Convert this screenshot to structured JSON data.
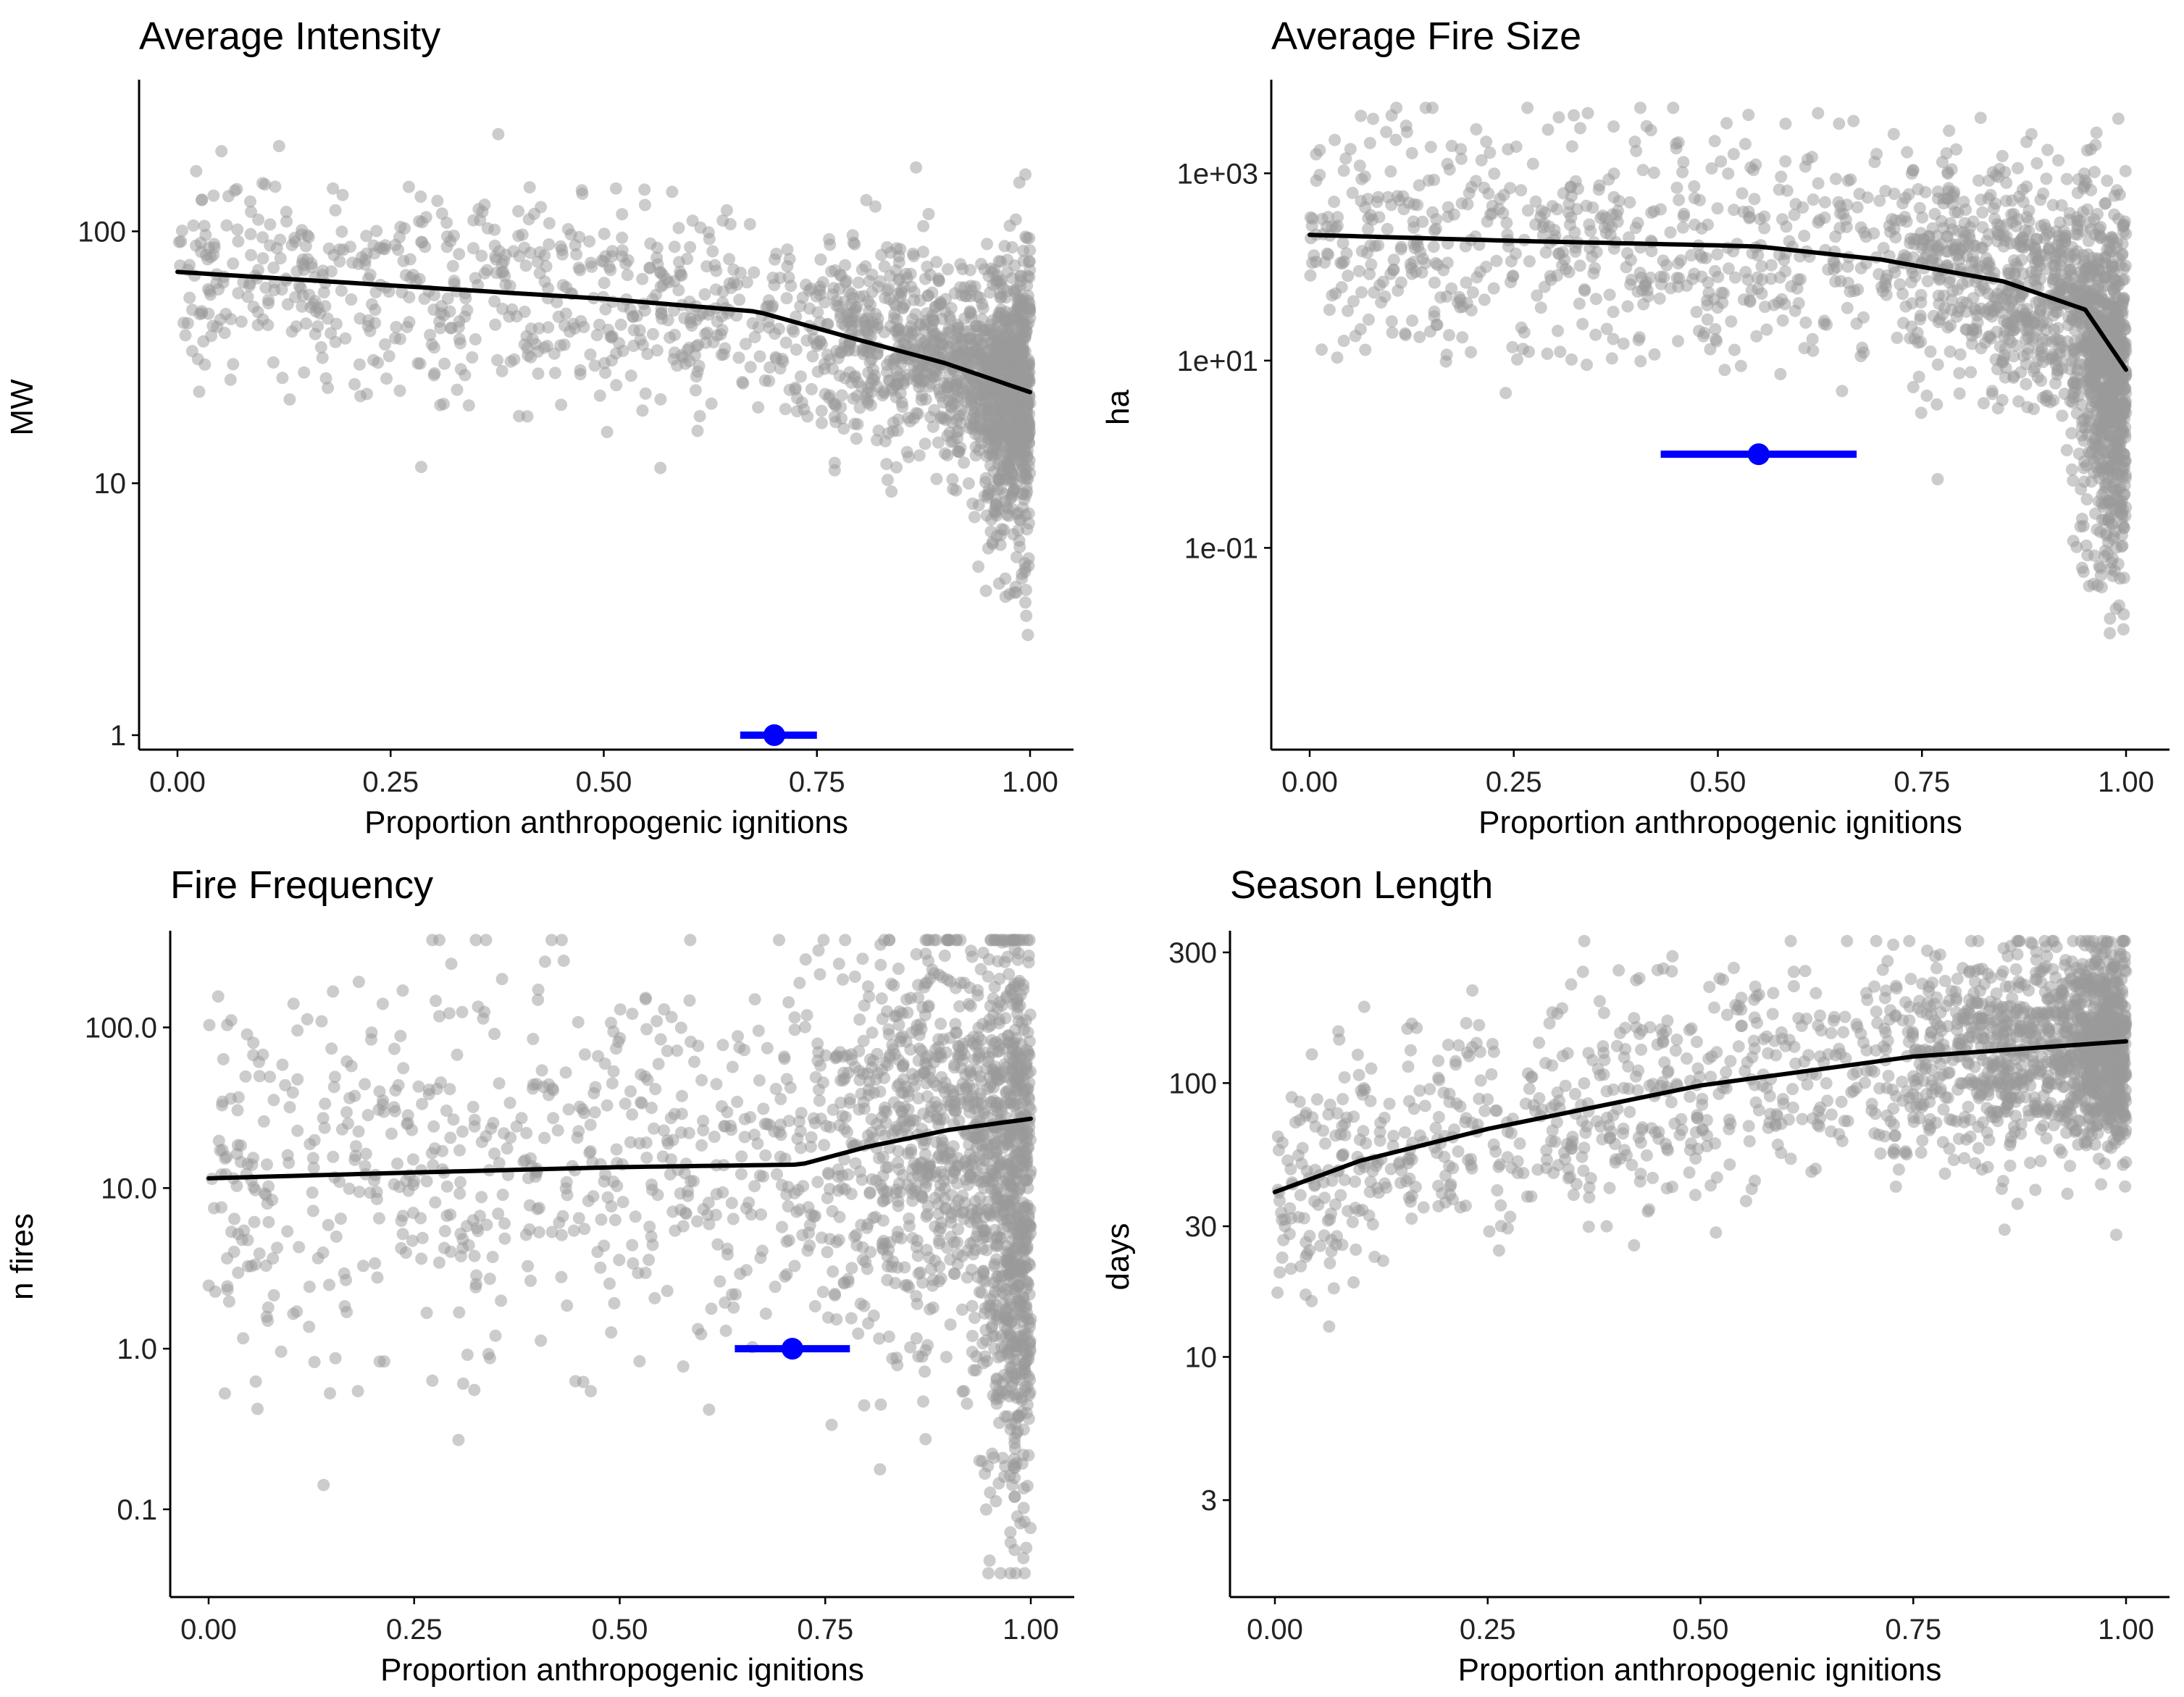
{
  "colors": {
    "points": "#999999",
    "trend": "#000000",
    "estimate": "#0000ff"
  },
  "chart_data": [
    {
      "type": "scatter",
      "title": "Average Intensity",
      "xlabel": "Proportion anthropogenic ignitions",
      "ylabel": "MW",
      "xlim": [
        0,
        1
      ],
      "ylim": [
        1,
        400
      ],
      "yscale": "log",
      "xticks": [
        0,
        0.25,
        0.5,
        0.75,
        1
      ],
      "xtick_labels": [
        "0.00",
        "0.25",
        "0.50",
        "0.75",
        "1.00"
      ],
      "yticks": [
        1,
        10,
        100
      ],
      "ytick_labels": [
        "1",
        "10",
        "100"
      ],
      "grid": false,
      "trend": {
        "x": [
          0,
          0.25,
          0.5,
          0.68,
          0.8,
          0.9,
          1.0
        ],
        "y": [
          69,
          61,
          54,
          48,
          37,
          30,
          23
        ]
      },
      "estimate": {
        "x": 0.7,
        "low": 0.66,
        "high": 0.75,
        "y": 1
      },
      "points": {
        "count": 1500,
        "trend_key": "trend",
        "edge_count": 500,
        "edge_lo": 5,
        "edge_hi": 90,
        "spread_decades": 0.2,
        "min": 2.5,
        "max": 340
      }
    },
    {
      "type": "scatter",
      "title": "Average Fire Size",
      "xlabel": "Proportion anthropogenic ignitions",
      "ylabel": "ha",
      "xlim": [
        0,
        1
      ],
      "ylim": [
        0.001,
        10000
      ],
      "yscale": "log",
      "xticks": [
        0,
        0.25,
        0.5,
        0.75,
        1
      ],
      "xtick_labels": [
        "0.00",
        "0.25",
        "0.50",
        "0.75",
        "1.00"
      ],
      "yticks": [
        0.1,
        10,
        1000
      ],
      "ytick_labels": [
        "1e-01",
        "1e+01",
        "1e+03"
      ],
      "grid": false,
      "trend": {
        "x": [
          0,
          0.25,
          0.5,
          0.55,
          0.7,
          0.85,
          0.95,
          1.0
        ],
        "y": [
          220,
          190,
          170,
          165,
          120,
          70,
          35,
          8
        ]
      },
      "estimate": {
        "x": 0.55,
        "low": 0.43,
        "high": 0.67,
        "y": 1
      },
      "points": {
        "count": 1500,
        "trend_key": "trend",
        "edge_count": 500,
        "edge_lo": 0.05,
        "edge_hi": 300,
        "spread_decades": 0.65,
        "min": 0.005,
        "max": 5000
      }
    },
    {
      "type": "scatter",
      "title": "Fire Frequency",
      "xlabel": "Proportion anthropogenic ignitions",
      "ylabel": "n fires",
      "xlim": [
        0,
        1
      ],
      "ylim": [
        0.035,
        400
      ],
      "yscale": "log",
      "xticks": [
        0,
        0.25,
        0.5,
        0.75,
        1
      ],
      "xtick_labels": [
        "0.00",
        "0.25",
        "0.50",
        "0.75",
        "1.00"
      ],
      "yticks": [
        0.1,
        1,
        10,
        100
      ],
      "ytick_labels": [
        "0.1",
        "1.0",
        "10.0",
        "100.0"
      ],
      "grid": false,
      "trend": {
        "x": [
          0,
          0.25,
          0.5,
          0.72,
          0.8,
          0.9,
          1.0
        ],
        "y": [
          11.5,
          12.5,
          13.5,
          14,
          18,
          23,
          27
        ]
      },
      "estimate": {
        "x": 0.71,
        "low": 0.64,
        "high": 0.78,
        "y": 1
      },
      "points": {
        "count": 1500,
        "trend_key": "trend",
        "edge_count": 500,
        "edge_lo": 0.05,
        "edge_hi": 250,
        "spread_decades": 0.65,
        "min": 0.04,
        "max": 350
      }
    },
    {
      "type": "scatter",
      "title": "Season Length",
      "xlabel": "Proportion anthropogenic ignitions",
      "ylabel": "days",
      "xlim": [
        0,
        1
      ],
      "ylim": [
        1.5,
        360
      ],
      "yscale": "log",
      "xticks": [
        0,
        0.25,
        0.5,
        0.75,
        1
      ],
      "xtick_labels": [
        "0.00",
        "0.25",
        "0.50",
        "0.75",
        "1.00"
      ],
      "yticks": [
        3,
        10,
        30,
        100,
        300
      ],
      "ytick_labels": [
        "3",
        "10",
        "30",
        "100",
        "300"
      ],
      "grid": false,
      "trend": {
        "x": [
          0,
          0.1,
          0.25,
          0.5,
          0.75,
          1.0
        ],
        "y": [
          40,
          52,
          68,
          98,
          125,
          142
        ]
      },
      "points": {
        "count": 1500,
        "trend_key": "trend",
        "edge_count": 400,
        "edge_lo": 60,
        "edge_hi": 300,
        "spread_decades": 0.2,
        "min": 1.6,
        "max": 330
      }
    }
  ]
}
